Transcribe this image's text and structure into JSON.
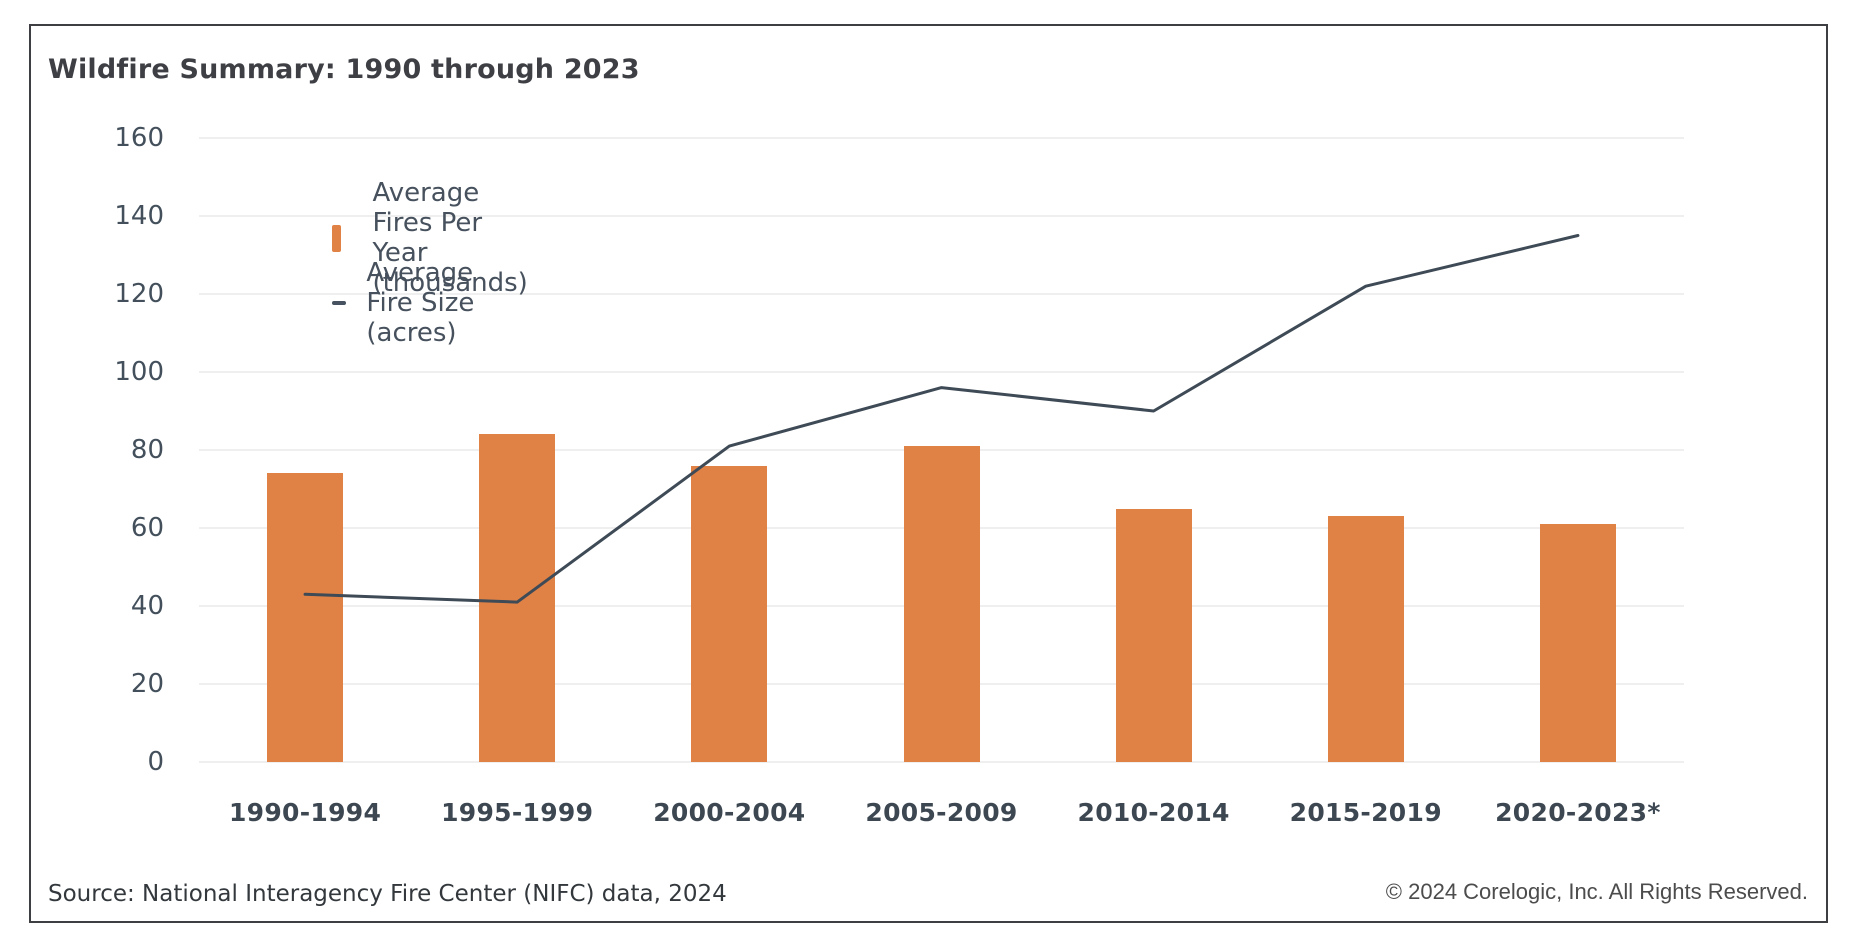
{
  "title": "Wildfire Summary: 1990 through 2023",
  "chart_data": {
    "type": "combo",
    "categories": [
      "1990-1994",
      "1995-1999",
      "2000-2004",
      "2005-2009",
      "2010-2014",
      "2015-2019",
      "2020-2023*"
    ],
    "series": [
      {
        "name": "Average Fires Per Year (thousands)",
        "type": "bar",
        "color": "#e08246",
        "values": [
          74,
          84,
          76,
          81,
          65,
          63,
          61
        ]
      },
      {
        "name": "Average Fire Size (acres)",
        "type": "line",
        "color": "#3e4a56",
        "values": [
          43,
          41,
          81,
          96,
          90,
          122,
          135
        ]
      }
    ],
    "ylim": [
      0,
      160
    ],
    "ytick_step": 20,
    "yticks": [
      0,
      20,
      40,
      60,
      80,
      100,
      120,
      140,
      160
    ],
    "grid": "horizontal",
    "legend_position": "top-left-inside",
    "gridline_color": "#efefef"
  },
  "legend": {
    "items": [
      {
        "label": "Average Fires Per Year (thousands)",
        "swatch": "square",
        "color": "#e08246"
      },
      {
        "label": "Average Fire Size (acres)",
        "swatch": "line",
        "color": "#46525f"
      }
    ]
  },
  "footer": {
    "source": "Source: National Interagency Fire Center (NIFC) data, 2024",
    "copyright": "© 2024 Corelogic, Inc. All Rights Reserved."
  }
}
